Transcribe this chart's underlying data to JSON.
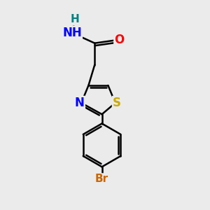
{
  "background_color": "#ebebeb",
  "bond_color": "#000000",
  "bond_width": 1.8,
  "atom_colors": {
    "N": "#0000ff",
    "O": "#ff0000",
    "S": "#ccaa00",
    "Br": "#cc6600",
    "C": "#000000",
    "H": "#008080"
  },
  "layout": {
    "xlim": [
      0,
      10
    ],
    "ylim": [
      0,
      10
    ]
  }
}
